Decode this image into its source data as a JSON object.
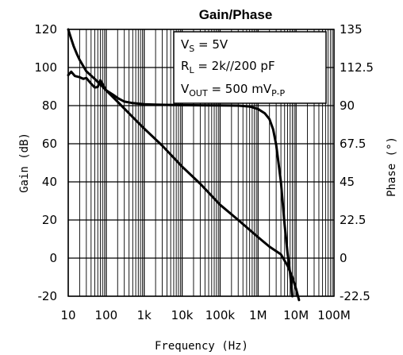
{
  "chart_data": {
    "type": "line",
    "title": "Gain/Phase",
    "xlabel": "Frequency (Hz)",
    "ylabel": "Gain (dB)",
    "y2label": "Phase (°)",
    "xscale": "log",
    "xlim": [
      10,
      100000000
    ],
    "ylim": [
      -20,
      120
    ],
    "y2lim": [
      -22.5,
      135
    ],
    "grid": true,
    "x_tick_labels": [
      "10",
      "100",
      "1k",
      "10k",
      "100k",
      "1M",
      "10M",
      "100M"
    ],
    "x_tick_values": [
      10,
      100,
      1000,
      10000,
      100000,
      1000000,
      10000000,
      100000000
    ],
    "y_tick_labels": [
      "-20",
      "0",
      "20",
      "40",
      "60",
      "80",
      "100",
      "120"
    ],
    "y_tick_values": [
      -20,
      0,
      20,
      40,
      60,
      80,
      100,
      120
    ],
    "y2_tick_labels": [
      "-22.5",
      "0",
      "22.5",
      "45",
      "67.5",
      "90",
      "112.5",
      "135"
    ],
    "y2_tick_values": [
      -22.5,
      0,
      22.5,
      45,
      67.5,
      90,
      112.5,
      135
    ],
    "annotations": [
      {
        "main": "V",
        "sub": "S",
        "rest": " = 5V"
      },
      {
        "main": "R",
        "sub": "L",
        "rest": " = 2k//200 pF"
      },
      {
        "main": "V",
        "sub": "OUT",
        "rest": " = 500 mV",
        "sub2": "P-P"
      }
    ],
    "series": [
      {
        "axis": "left",
        "x": [
          10,
          12,
          14,
          17,
          20,
          30,
          50,
          100,
          200,
          500,
          1000,
          3000,
          10000,
          30000,
          100000,
          300000,
          1000000,
          2000000,
          4000000,
          6000000,
          8000000,
          10000000,
          12000000
        ],
        "values": [
          120,
          115,
          111,
          107,
          104,
          98,
          94,
          88,
          82,
          74,
          68,
          59,
          48,
          39,
          28,
          20,
          11,
          6,
          2,
          -4,
          -10,
          -16,
          -22
        ]
      },
      {
        "axis": "right",
        "x": [
          10,
          12,
          15,
          20,
          25,
          30,
          40,
          50,
          60,
          70,
          80,
          90,
          100,
          150,
          200,
          300,
          500,
          1000,
          2000,
          10000,
          100000,
          300000,
          600000,
          1000000,
          1500000,
          2000000,
          2500000,
          3000000,
          4000000,
          5000000,
          6000000,
          7000000,
          8000000
        ],
        "values": [
          108,
          110,
          107.5,
          106.8,
          105.8,
          106.3,
          103,
          100.7,
          101,
          104.9,
          102.9,
          100.7,
          99,
          96.5,
          94.5,
          92.4,
          91.5,
          90.8,
          90.6,
          90.3,
          90.1,
          90,
          89.5,
          88,
          85.5,
          82,
          76,
          67,
          45,
          20,
          3,
          -9,
          -22.5
        ]
      }
    ]
  }
}
